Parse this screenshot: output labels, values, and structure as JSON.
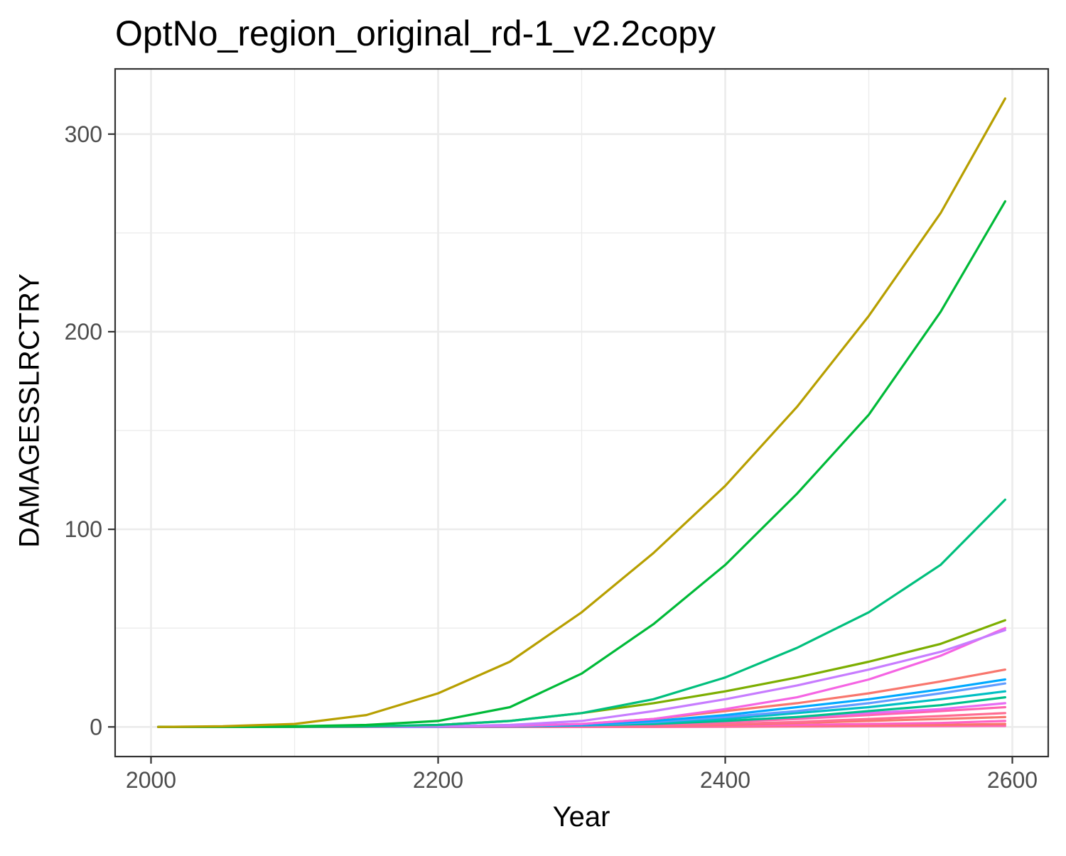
{
  "chart_data": {
    "type": "line",
    "title": "OptNo_region_original_rd-1_v2.2copy",
    "xlabel": "Year",
    "ylabel": "DAMAGESSLRCTRY",
    "xlim": [
      1975,
      2625
    ],
    "ylim": [
      -15,
      333
    ],
    "x_ticks": [
      2000,
      2200,
      2400,
      2600
    ],
    "y_ticks": [
      0,
      100,
      200,
      300
    ],
    "grid": true,
    "legend": "none",
    "x": [
      2005,
      2050,
      2100,
      2150,
      2200,
      2250,
      2300,
      2350,
      2400,
      2450,
      2500,
      2550,
      2595
    ],
    "series": [
      {
        "color": "#B79F00",
        "values": [
          0,
          0.3,
          1.5,
          6,
          17,
          33,
          58,
          88,
          122,
          162,
          208,
          260,
          318
        ]
      },
      {
        "color": "#00BA38",
        "values": [
          0,
          0.1,
          0.3,
          1,
          3,
          10,
          27,
          52,
          82,
          118,
          158,
          210,
          266
        ]
      },
      {
        "color": "#00BF7D",
        "values": [
          0,
          0,
          0.1,
          0.3,
          1,
          3,
          7,
          14,
          25,
          40,
          58,
          82,
          115
        ]
      },
      {
        "color": "#7CAE00",
        "values": [
          0,
          0,
          0,
          0.2,
          1,
          3,
          7,
          12,
          18,
          25,
          33,
          42,
          54
        ]
      },
      {
        "color": "#C77CFF",
        "values": [
          0,
          0,
          0,
          0,
          0.3,
          1,
          3,
          8,
          14,
          21,
          29,
          38,
          49
        ]
      },
      {
        "color": "#F564E3",
        "values": [
          0,
          0,
          0,
          0,
          0.2,
          0.5,
          1.5,
          4,
          9,
          15,
          24,
          36,
          50
        ]
      },
      {
        "color": "#F8766D",
        "values": [
          0,
          0,
          0,
          0,
          0.2,
          0.5,
          1.5,
          4,
          8,
          12,
          17,
          23,
          29
        ]
      },
      {
        "color": "#00A9FF",
        "values": [
          0,
          0,
          0,
          0,
          0.1,
          0.5,
          1,
          3,
          6,
          10,
          14,
          19,
          24
        ]
      },
      {
        "color": "#619CFF",
        "values": [
          0,
          0,
          0,
          0,
          0.1,
          0.3,
          1,
          2.5,
          5,
          8,
          12,
          17,
          22
        ]
      },
      {
        "color": "#00BFC4",
        "values": [
          0,
          0,
          0,
          0,
          0.1,
          0.3,
          1,
          2,
          4,
          7,
          10,
          14,
          18
        ]
      },
      {
        "color": "#00C08B",
        "values": [
          0,
          0,
          0,
          0,
          0.1,
          0.2,
          0.8,
          1.5,
          3,
          5,
          8,
          11,
          15
        ]
      },
      {
        "color": "#E76BF3",
        "values": [
          0,
          0,
          0,
          0,
          0.1,
          0.2,
          0.6,
          1.5,
          3,
          5,
          7,
          9,
          12
        ]
      },
      {
        "color": "#FF64B0",
        "values": [
          0,
          0,
          0,
          0,
          0.1,
          0.2,
          0.5,
          1.2,
          2.5,
          4,
          6,
          8,
          10
        ]
      },
      {
        "color": "#FF6C91",
        "values": [
          0,
          0,
          0,
          0,
          0,
          0.1,
          0.3,
          0.8,
          1.5,
          2.5,
          4,
          5.5,
          7
        ]
      },
      {
        "color": "#F8766D",
        "values": [
          0,
          0,
          0,
          0,
          0,
          0.1,
          0.2,
          0.5,
          1,
          2,
          3,
          4,
          5
        ]
      },
      {
        "color": "#FF61C3",
        "values": [
          0,
          0,
          0,
          0,
          0,
          0,
          0.1,
          0.3,
          0.6,
          1,
          1.5,
          2,
          3
        ]
      },
      {
        "color": "#F8766D",
        "values": [
          0,
          0,
          0,
          0,
          0,
          0,
          0.1,
          0.2,
          0.3,
          0.5,
          0.8,
          1,
          1.5
        ]
      },
      {
        "color": "#FF64B0",
        "values": [
          0,
          0,
          0,
          0,
          0,
          0,
          0,
          0,
          0.1,
          0.2,
          0.3,
          0.4,
          0.5
        ]
      }
    ]
  }
}
